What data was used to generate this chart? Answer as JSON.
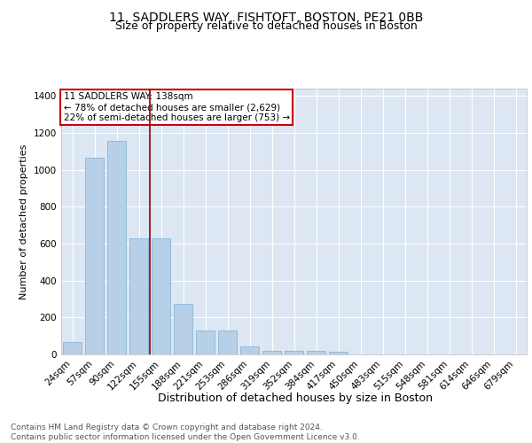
{
  "title": "11, SADDLERS WAY, FISHTOFT, BOSTON, PE21 0BB",
  "subtitle": "Size of property relative to detached houses in Boston",
  "xlabel": "Distribution of detached houses by size in Boston",
  "ylabel": "Number of detached properties",
  "bar_color": "#b8cfe8",
  "bar_edge_color": "#7aaed4",
  "background_color": "#dce7f3",
  "categories": [
    "24sqm",
    "57sqm",
    "90sqm",
    "122sqm",
    "155sqm",
    "188sqm",
    "221sqm",
    "253sqm",
    "286sqm",
    "319sqm",
    "352sqm",
    "384sqm",
    "417sqm",
    "450sqm",
    "483sqm",
    "515sqm",
    "548sqm",
    "581sqm",
    "614sqm",
    "646sqm",
    "679sqm"
  ],
  "values": [
    65,
    1065,
    1155,
    630,
    630,
    275,
    130,
    130,
    45,
    20,
    20,
    20,
    15,
    0,
    0,
    0,
    0,
    0,
    0,
    0,
    0
  ],
  "ylim": [
    0,
    1440
  ],
  "yticks": [
    0,
    200,
    400,
    600,
    800,
    1000,
    1200,
    1400
  ],
  "red_line_x": 3.5,
  "annotation_title": "11 SADDLERS WAY: 138sqm",
  "annotation_line1": "← 78% of detached houses are smaller (2,629)",
  "annotation_line2": "22% of semi-detached houses are larger (753) →",
  "footer1": "Contains HM Land Registry data © Crown copyright and database right 2024.",
  "footer2": "Contains public sector information licensed under the Open Government Licence v3.0.",
  "grid_color": "#ffffff",
  "title_fontsize": 10,
  "subtitle_fontsize": 9,
  "xlabel_fontsize": 9,
  "ylabel_fontsize": 8,
  "tick_fontsize": 7.5,
  "annotation_fontsize": 7.5,
  "footer_fontsize": 6.5
}
